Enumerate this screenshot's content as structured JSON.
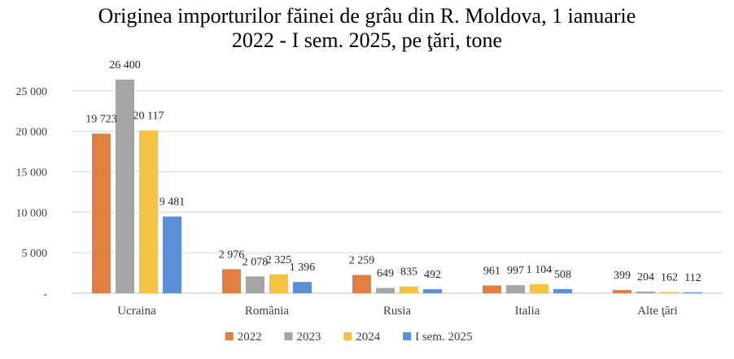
{
  "chart_data": {
    "type": "bar",
    "title_lines": [
      "Originea importurilor făinei de grâu din R. Moldova, 1 ianuarie",
      "2022 - I sem. 2025, pe ţări, tone"
    ],
    "categories": [
      "Ucraina",
      "România",
      "Rusia",
      "Italia",
      "Alte ţări"
    ],
    "series": [
      {
        "name": "2022",
        "color": "#e07f40",
        "values": [
          19723,
          2976,
          2259,
          961,
          399
        ],
        "labels": [
          "19 723",
          "2 976",
          "2 259",
          "961",
          "399"
        ]
      },
      {
        "name": "2023",
        "color": "#a5a5a5",
        "values": [
          26400,
          2078,
          649,
          997,
          204
        ],
        "labels": [
          "26 400",
          "2 078",
          "649",
          "997",
          "204"
        ]
      },
      {
        "name": "2024",
        "color": "#f5c242",
        "values": [
          20117,
          2325,
          835,
          1104,
          162
        ],
        "labels": [
          "20 117",
          "2 325",
          "835",
          "1 104",
          "162"
        ]
      },
      {
        "name": "I sem. 2025",
        "color": "#5b8fd6",
        "values": [
          9481,
          1396,
          492,
          508,
          112
        ],
        "labels": [
          "9 481",
          "1 396",
          "492",
          "508",
          "112"
        ]
      }
    ],
    "yticks": [
      0,
      5000,
      10000,
      15000,
      20000,
      25000
    ],
    "ytick_labels": [
      "-",
      "5 000",
      "10 000",
      "15 000",
      "20 000",
      "25 000"
    ],
    "ylim": [
      0,
      27000
    ],
    "grid": true,
    "legend_position": "bottom"
  }
}
